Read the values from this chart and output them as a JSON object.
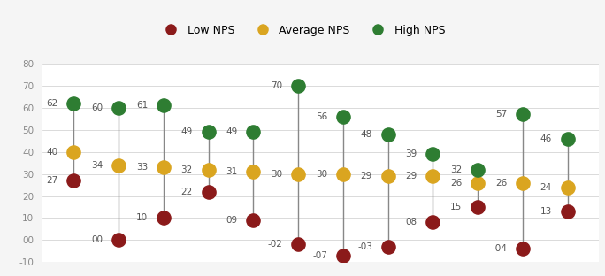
{
  "groups": [
    {
      "x": 0,
      "low": 27,
      "avg": 40,
      "high": 62
    },
    {
      "x": 1,
      "low": 0,
      "avg": 34,
      "high": 60
    },
    {
      "x": 2,
      "low": 10,
      "avg": 33,
      "high": 61
    },
    {
      "x": 3,
      "low": 22,
      "avg": 32,
      "high": 49
    },
    {
      "x": 4,
      "low": 9,
      "avg": 31,
      "high": 49
    },
    {
      "x": 5,
      "low": -2,
      "avg": 30,
      "high": 70
    },
    {
      "x": 6,
      "low": -7,
      "avg": 30,
      "high": 56
    },
    {
      "x": 7,
      "low": -3,
      "avg": 29,
      "high": 48
    },
    {
      "x": 8,
      "low": 8,
      "avg": 29,
      "high": 39
    },
    {
      "x": 9,
      "low": 15,
      "avg": 26,
      "high": 32
    },
    {
      "x": 10,
      "low": -4,
      "avg": 26,
      "high": 57
    },
    {
      "x": 11,
      "low": 13,
      "avg": 24,
      "high": 46
    }
  ],
  "low_color": "#8B1A1A",
  "avg_color": "#DAA520",
  "high_color": "#2E7D32",
  "line_color": "#888888",
  "marker_size": 120,
  "ylim": [
    -10,
    80
  ],
  "yticks": [
    -10,
    0,
    10,
    20,
    30,
    40,
    50,
    60,
    70,
    80
  ],
  "legend_labels": [
    "Low NPS",
    "Average NPS",
    "High NPS"
  ],
  "bg_color": "#f5f5f5",
  "plot_bg": "#ffffff",
  "label_fontsize": 7.5,
  "legend_area_color": "#e8e8e8"
}
